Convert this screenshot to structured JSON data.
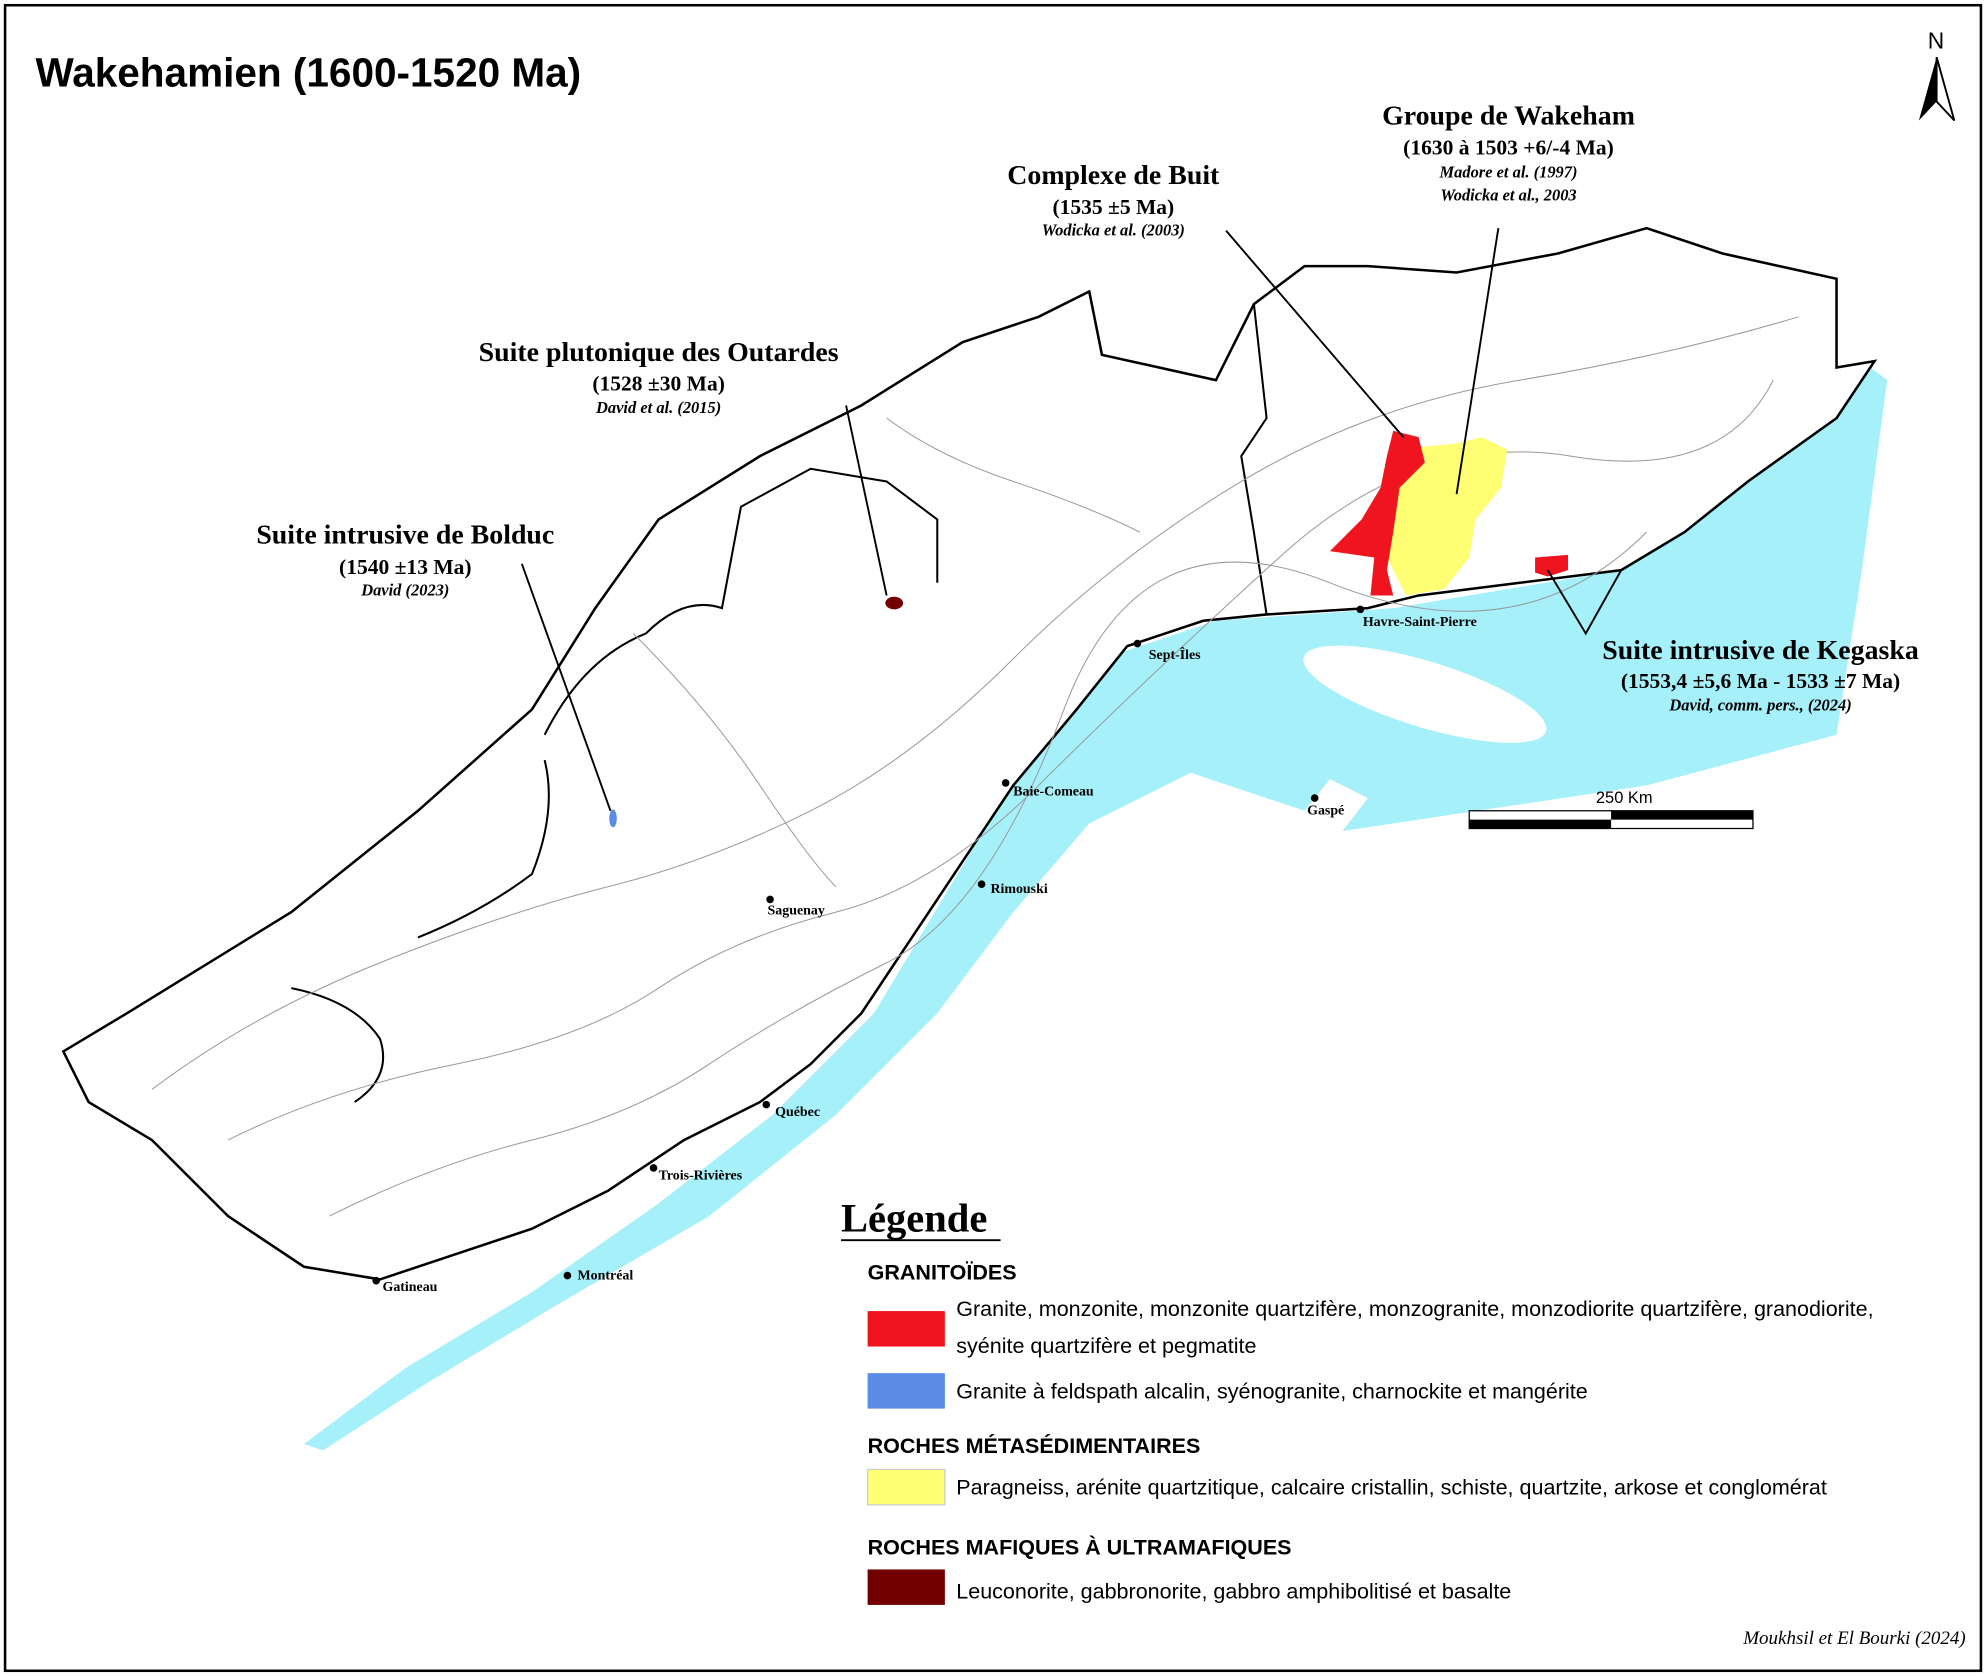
{
  "title": "Wakehamien (1600-1520 Ma)",
  "north_label": "N",
  "colors": {
    "water": "#a6f0fa",
    "granite_red": "#f0141e",
    "granite_blue": "#5a8ce6",
    "metased_yellow": "#ffff73",
    "mafic_darkred": "#730000"
  },
  "annotations": [
    {
      "name": "Groupe de Wakeham",
      "age": "(1630 à 1503 +6/-4 Ma)",
      "refs": [
        "Madore et al. (1997)",
        "Wodicka et al., 2003"
      ]
    },
    {
      "name": "Complexe de Buit",
      "age": "(1535  ±5 Ma)",
      "refs": [
        "Wodicka et al. (2003)"
      ]
    },
    {
      "name": "Suite plutonique des Outardes",
      "age": "(1528  ±30 Ma)",
      "refs": [
        "David et al. (2015)"
      ]
    },
    {
      "name": "Suite intrusive de Bolduc",
      "age": "(1540  ±13 Ma)",
      "refs": [
        "David (2023)"
      ]
    },
    {
      "name": "Suite intrusive de Kegaska",
      "age": "(1553,4 ±5,6 Ma - 1533 ±7 Ma)",
      "refs": [
        "David, comm. pers., (2024)"
      ]
    }
  ],
  "cities": [
    "Havre-Saint-Pierre",
    "Sept-Îles",
    "Baie-Comeau",
    "Gaspé",
    "Rimouski",
    "Saguenay",
    "Québec",
    "Trois-Rivières",
    "Montréal",
    "Gatineau"
  ],
  "scale_label": "250 Km",
  "legend": {
    "title": "Légende",
    "groups": [
      {
        "heading": "GRANITOÏDES",
        "items": [
          {
            "label_lines": [
              "Granite, monzonite, monzonite quartzifère, monzogranite, monzodiorite quartzifère, granodiorite,",
              "syénite quartzifère et pegmatite"
            ],
            "color": "#f0141e"
          },
          {
            "label_lines": [
              "Granite à feldspath alcalin, syénogranite, charnockite et mangérite"
            ],
            "color": "#5a8ce6"
          }
        ]
      },
      {
        "heading": "ROCHES MÉTASÉDIMENTAIRES",
        "items": [
          {
            "label_lines": [
              "Paragneiss, arénite quartzitique, calcaire cristallin, schiste, quartzite, arkose et conglomérat"
            ],
            "color": "#ffff73"
          }
        ]
      },
      {
        "heading": "ROCHES MAFIQUES À ULTRAMAFIQUES",
        "items": [
          {
            "label_lines": [
              "Leuconorite, gabbronorite, gabbro amphibolitisé et basalte"
            ],
            "color": "#730000"
          }
        ]
      }
    ]
  },
  "credit": "Moukhsil et El Bourki (2024)"
}
